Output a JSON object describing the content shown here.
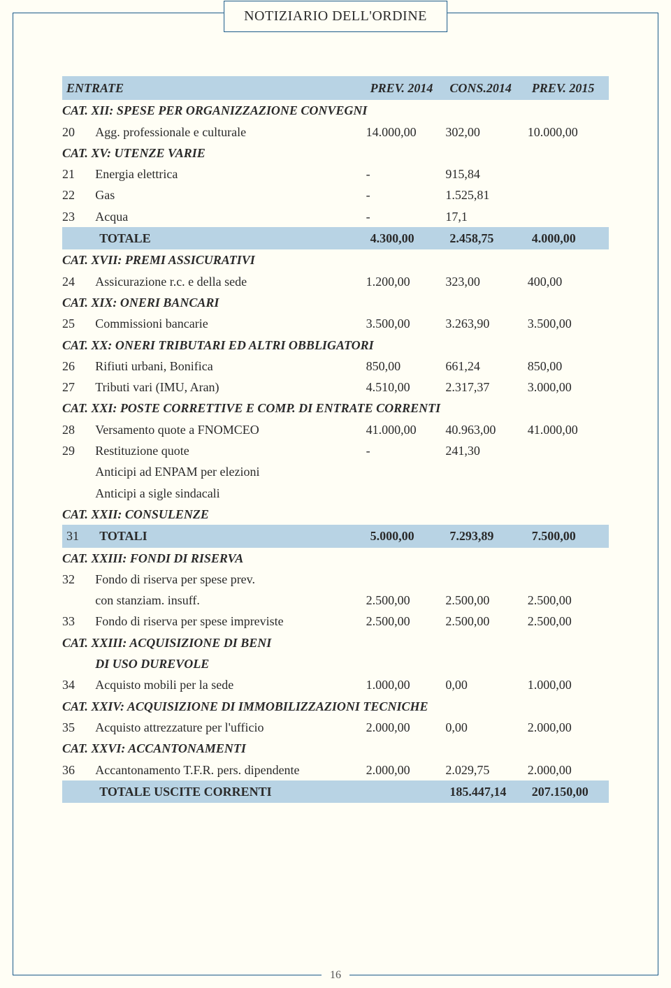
{
  "page_title": "NOTIZIARIO DELL'ORDINE",
  "page_number": "16",
  "colors": {
    "page_bg": "#fffef5",
    "border": "#1a5a8a",
    "row_hl": "#b8d3e4",
    "text": "#2a2a2a"
  },
  "header": {
    "col_entrate": "ENTRATE",
    "col_prev2014": "PREV. 2014",
    "col_cons2014": "CONS.2014",
    "col_prev2015": "PREV. 2015"
  },
  "cat12": {
    "title": "CAT. XII: SPESE PER ORGANIZZAZIONE CONVEGNI",
    "r20": {
      "n": "20",
      "d": "Agg. professionale e culturale",
      "v1": "14.000,00",
      "v2": "302,00",
      "v3": "10.000,00"
    }
  },
  "cat15": {
    "title": "CAT. XV: UTENZE VARIE",
    "r21": {
      "n": "21",
      "d": "Energia elettrica",
      "v1": "-",
      "v2": "915,84",
      "v3": ""
    },
    "r22": {
      "n": "22",
      "d": "Gas",
      "v1": "-",
      "v2": "1.525,81",
      "v3": ""
    },
    "r23": {
      "n": "23",
      "d": "Acqua",
      "v1": "-",
      "v2": "17,1",
      "v3": ""
    },
    "total": {
      "d": "TOTALE",
      "v1": "4.300,00",
      "v2": "2.458,75",
      "v3": "4.000,00"
    }
  },
  "cat17": {
    "title": "CAT. XVII: PREMI ASSICURATIVI",
    "r24": {
      "n": "24",
      "d": "Assicurazione r.c. e della sede",
      "v1": "1.200,00",
      "v2": "323,00",
      "v3": "400,00"
    }
  },
  "cat19": {
    "title": "CAT. XIX: ONERI BANCARI",
    "r25": {
      "n": "25",
      "d": "Commissioni bancarie",
      "v1": "3.500,00",
      "v2": "3.263,90",
      "v3": "3.500,00"
    }
  },
  "cat20": {
    "title": "CAT. XX: ONERI TRIBUTARI ED ALTRI OBBLIGATORI",
    "r26": {
      "n": "26",
      "d": "Rifiuti urbani, Bonifica",
      "v1": "850,00",
      "v2": "661,24",
      "v3": "850,00"
    },
    "r27": {
      "n": "27",
      "d": "Tributi vari (IMU, Aran)",
      "v1": "4.510,00",
      "v2": "2.317,37",
      "v3": "3.000,00"
    }
  },
  "cat21": {
    "title": "CAT. XXI: POSTE CORRETTIVE E COMP. DI ENTRATE CORRENTI",
    "r28": {
      "n": "28",
      "d": "Versamento quote a FNOMCEO",
      "v1": "41.000,00",
      "v2": "40.963,00",
      "v3": "41.000,00"
    },
    "r29": {
      "n": "29",
      "d": "Restituzione quote",
      "v1": "-",
      "v2": "241,30",
      "v3": ""
    },
    "extra1": "Anticipi ad ENPAM per elezioni",
    "extra2": "Anticipi a sigle sindacali"
  },
  "cat22": {
    "title": "CAT. XXII: CONSULENZE",
    "r31": {
      "n": "31",
      "d": "TOTALI",
      "v1": "5.000,00",
      "v2": "7.293,89",
      "v3": "7.500,00"
    }
  },
  "cat23a": {
    "title": "CAT. XXIII: FONDI DI RISERVA",
    "r32": {
      "n": "32",
      "d1": "Fondo di riserva per spese prev.",
      "d2": "con stanziam. insuff.",
      "v1": "2.500,00",
      "v2": "2.500,00",
      "v3": "2.500,00"
    },
    "r33": {
      "n": "33",
      "d": "Fondo di riserva per spese impreviste",
      "v1": "2.500,00",
      "v2": "2.500,00",
      "v3": "2.500,00"
    }
  },
  "cat23b": {
    "title": "CAT. XXIII: ACQUISIZIONE DI BENI",
    "sub": "DI USO DUREVOLE",
    "r34": {
      "n": "34",
      "d": "Acquisto mobili per la sede",
      "v1": "1.000,00",
      "v2": "0,00",
      "v3": "1.000,00"
    }
  },
  "cat24": {
    "title": "CAT. XXIV: ACQUISIZIONE DI IMMOBILIZZAZIONI TECNICHE",
    "r35": {
      "n": "35",
      "d": "Acquisto attrezzature per l'ufficio",
      "v1": "2.000,00",
      "v2": "0,00",
      "v3": "2.000,00"
    }
  },
  "cat26": {
    "title": "CAT. XXVI: ACCANTONAMENTI",
    "r36": {
      "n": "36",
      "d": "Accantonamento T.F.R. pers. dipendente",
      "v1": "2.000,00",
      "v2": "2.029,75",
      "v3": "2.000,00"
    }
  },
  "grand_total": {
    "d": "TOTALE USCITE CORRENTI",
    "v2": "185.447,14",
    "v3": "207.150,00"
  }
}
